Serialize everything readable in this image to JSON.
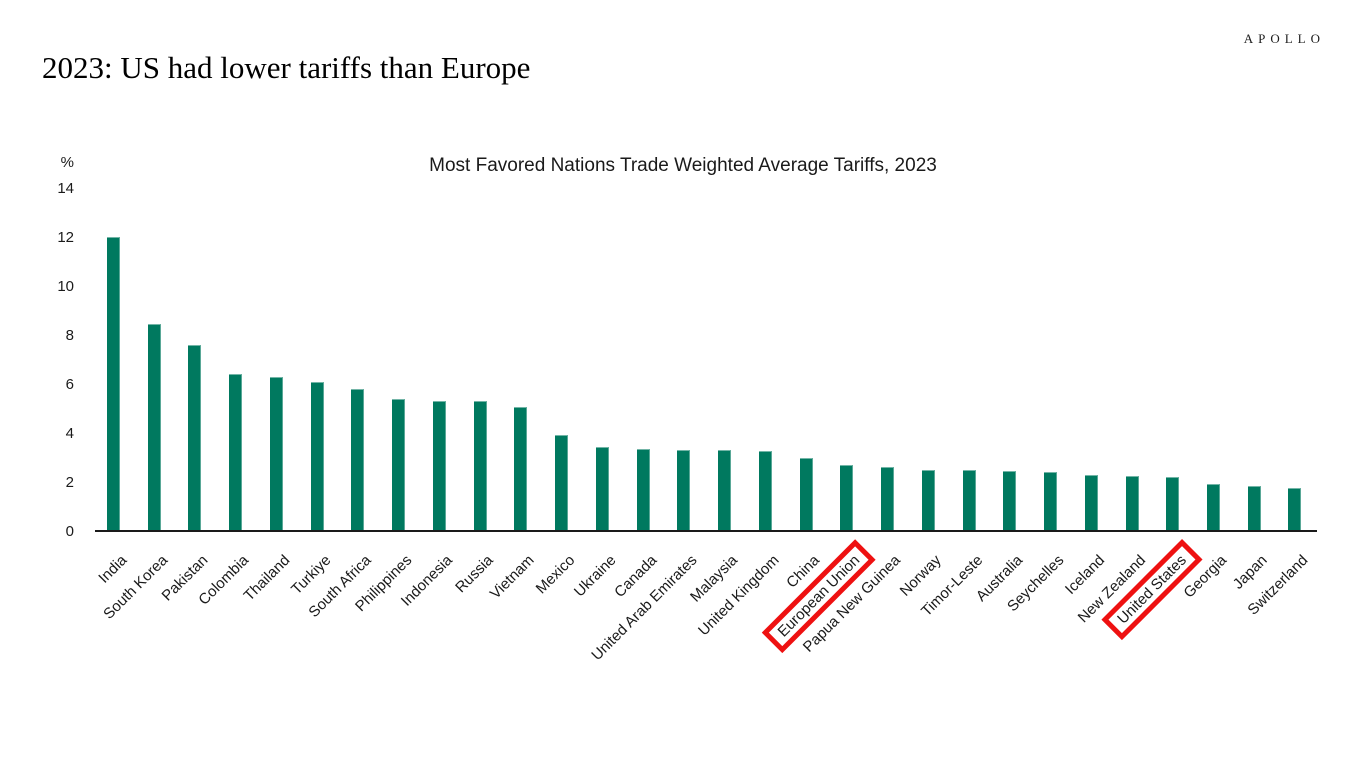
{
  "page": {
    "logo": "APOLLO",
    "title": "2023: US had lower tariffs than Europe"
  },
  "chart_data": {
    "type": "bar",
    "title": "Most Favored Nations Trade Weighted Average Tariffs, 2023",
    "unit_label": "%",
    "xlabel": "",
    "ylabel": "%",
    "ylim": [
      0,
      14
    ],
    "yticks": [
      0,
      2,
      4,
      6,
      8,
      10,
      12,
      14
    ],
    "grid": false,
    "legend": "none",
    "bar_color": "#00795f",
    "axis_color": "#1a1a1a",
    "highlight_box_color": "#ee1111",
    "highlighted_categories": [
      "European Union",
      "United States"
    ],
    "categories": [
      "India",
      "South Korea",
      "Pakistan",
      "Colombia",
      "Thailand",
      "Turkiye",
      "South Africa",
      "Philippines",
      "Indonesia",
      "Russia",
      "Vietnam",
      "Mexico",
      "Ukraine",
      "Canada",
      "United Arab Emirates",
      "Malaysia",
      "United Kingdom",
      "China",
      "European Union",
      "Papua New Guinea",
      "Norway",
      "Timor-Leste",
      "Australia",
      "Seychelles",
      "Iceland",
      "New Zealand",
      "United States",
      "Georgia",
      "Japan",
      "Switzerland"
    ],
    "values": [
      12.0,
      8.45,
      7.6,
      6.4,
      6.3,
      6.1,
      5.8,
      5.4,
      5.3,
      5.3,
      5.05,
      3.9,
      3.45,
      3.35,
      3.3,
      3.3,
      3.25,
      3.0,
      2.7,
      2.6,
      2.5,
      2.5,
      2.45,
      2.4,
      2.3,
      2.25,
      2.2,
      1.9,
      1.85,
      1.75
    ]
  }
}
